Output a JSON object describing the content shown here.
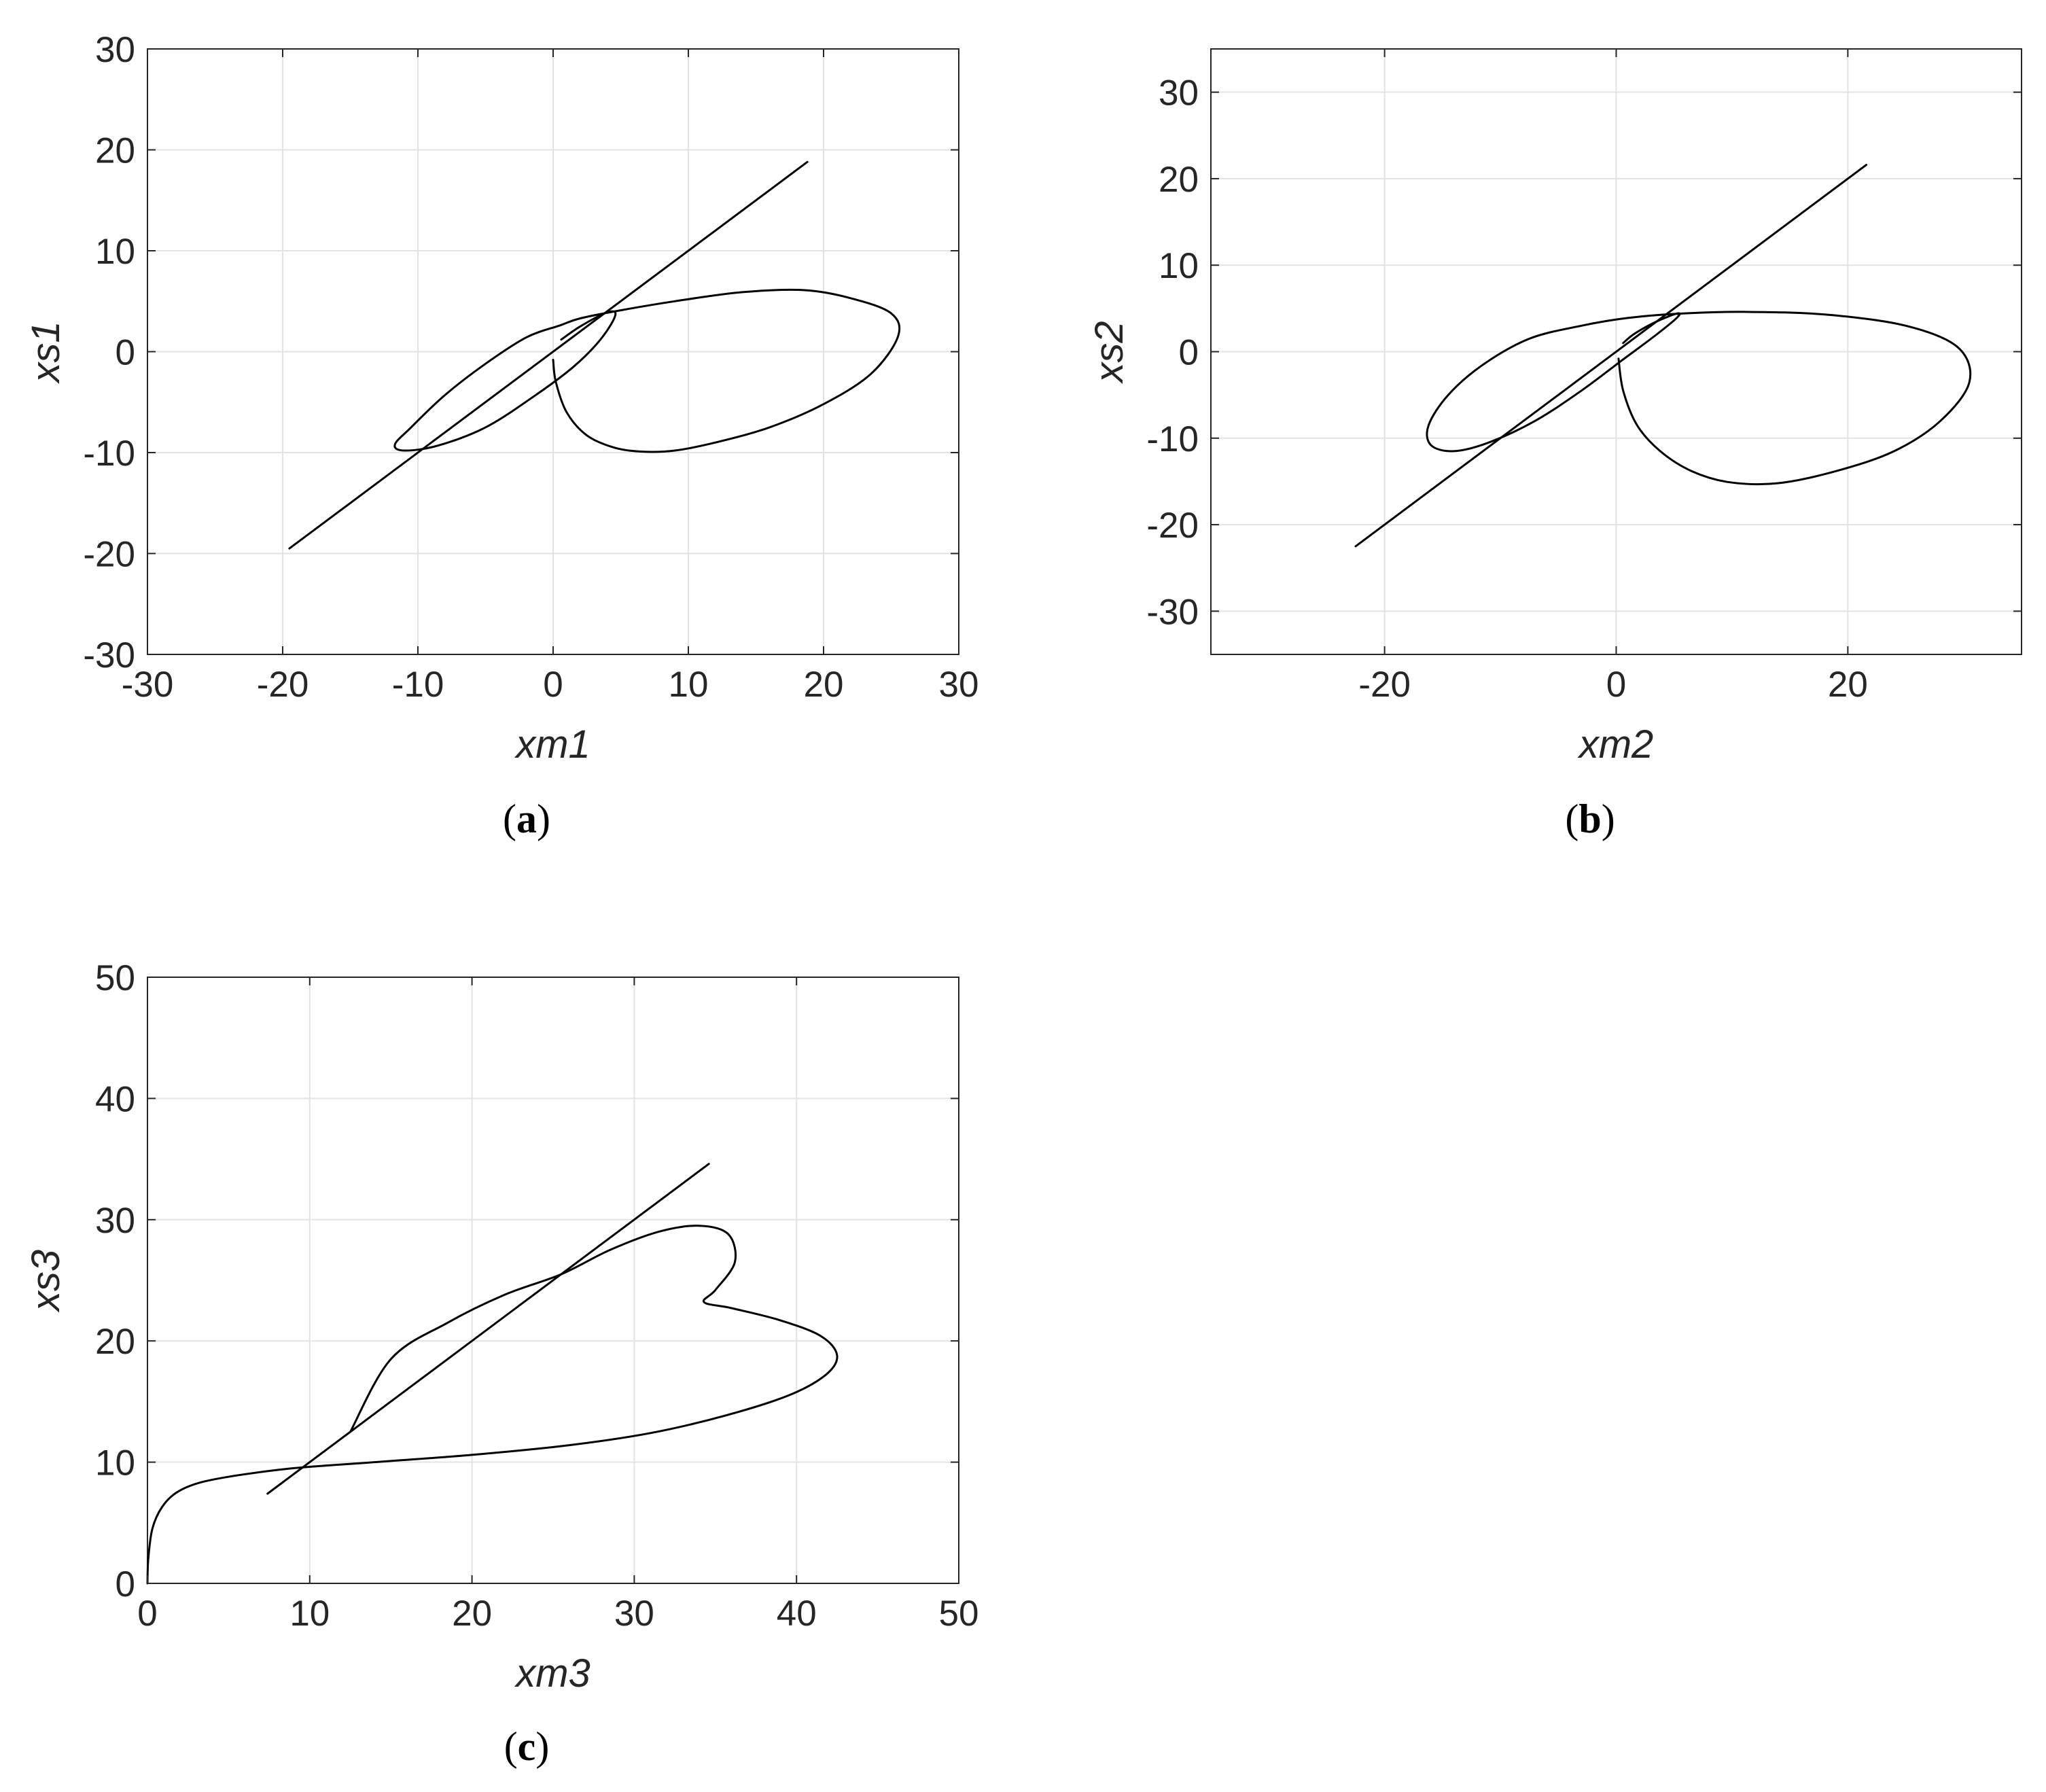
{
  "chart_data": [
    {
      "id": "a",
      "type": "line",
      "caption": "a",
      "xlabel": "xm1",
      "ylabel": "xs1",
      "xlim": [
        -30,
        30
      ],
      "ylim": [
        -30,
        30
      ],
      "xticks": [
        -30,
        -20,
        -10,
        0,
        10,
        20,
        30
      ],
      "yticks": [
        -30,
        -20,
        -10,
        0,
        10,
        20,
        30
      ],
      "xtick_labels": [
        "-30",
        "-20",
        "-10",
        "0",
        "10",
        "20",
        "30"
      ],
      "ytick_labels": [
        "-30",
        "-20",
        "-10",
        "0",
        "10",
        "20",
        "30"
      ],
      "grid": true,
      "series": [
        {
          "kind": "straight-line",
          "color": "#000000",
          "x": [
            -19.5,
            18.8
          ],
          "y": [
            -19.5,
            18.8
          ]
        },
        {
          "kind": "trajectory",
          "color": "#000000",
          "x": [
            0,
            0.2,
            1,
            2.5,
            4.5,
            6.5,
            9,
            12,
            16,
            20,
            23.5,
            25.5,
            25,
            22,
            18.5,
            14,
            9,
            5,
            2,
            0.5,
            -2,
            -5,
            -8,
            -10.5,
            -11.7,
            -11,
            -8.5,
            -5,
            -1.5,
            1.5,
            3.5,
            4.6,
            4,
            2,
            0.6
          ],
          "y": [
            -0.8,
            -3,
            -6,
            -8.3,
            -9.5,
            -9.9,
            -9.8,
            -9,
            -7.5,
            -5.2,
            -2.2,
            1.5,
            3.8,
            5.3,
            6.1,
            5.9,
            5,
            4.1,
            3.3,
            2.6,
            1.4,
            -1.2,
            -4.3,
            -7.5,
            -9.2,
            -9.8,
            -9.3,
            -7.5,
            -4.5,
            -1.5,
            1.2,
            3.6,
            3.9,
            2.5,
            1.2
          ]
        }
      ]
    },
    {
      "id": "b",
      "type": "line",
      "caption": "b",
      "xlabel": "xm2",
      "ylabel": "xs2",
      "xlim": [
        -35,
        35
      ],
      "ylim": [
        -35,
        35
      ],
      "xticks": [
        -20,
        0,
        20
      ],
      "yticks": [
        -30,
        -20,
        -10,
        0,
        10,
        20,
        30
      ],
      "xtick_labels": [
        "-20",
        "0",
        "20"
      ],
      "ytick_labels": [
        "-30",
        "-20",
        "-10",
        "0",
        "10",
        "20",
        "30"
      ],
      "grid": true,
      "series": [
        {
          "kind": "straight-line",
          "color": "#000000",
          "x": [
            -22.5,
            21.6
          ],
          "y": [
            -22.5,
            21.6
          ]
        },
        {
          "kind": "trajectory",
          "color": "#000000",
          "x": [
            0.2,
            0.6,
            1.8,
            3.8,
            6.5,
            9.8,
            14,
            19,
            24,
            28,
            30.5,
            29.5,
            25,
            18,
            11,
            5.5,
            1,
            -3,
            -7.5,
            -11.5,
            -14.5,
            -16.2,
            -16,
            -14,
            -11,
            -7,
            -3,
            0.5,
            3.5,
            5.3,
            5.2,
            3.2,
            1.5,
            0.6
          ],
          "y": [
            -0.8,
            -4.5,
            -8.5,
            -11.5,
            -13.8,
            -15.1,
            -15.2,
            -13.8,
            -11.5,
            -8,
            -3.5,
            0.5,
            3,
            4.3,
            4.6,
            4.4,
            3.9,
            3,
            1.5,
            -1.5,
            -5,
            -8.5,
            -10.8,
            -11.5,
            -10.5,
            -8,
            -4.5,
            -1,
            2,
            4,
            4.4,
            3.3,
            2,
            1
          ]
        }
      ]
    },
    {
      "id": "c",
      "type": "line",
      "caption": "c",
      "xlabel": "xm3",
      "ylabel": "xs3",
      "xlim": [
        0,
        50
      ],
      "ylim": [
        0,
        50
      ],
      "xticks": [
        0,
        10,
        20,
        30,
        40,
        50
      ],
      "yticks": [
        0,
        10,
        20,
        30,
        40,
        50
      ],
      "xtick_labels": [
        "0",
        "10",
        "20",
        "30",
        "40",
        "50"
      ],
      "ytick_labels": [
        "0",
        "10",
        "20",
        "30",
        "40",
        "50"
      ],
      "grid": true,
      "series": [
        {
          "kind": "straight-line",
          "color": "#000000",
          "x": [
            7.4,
            34.6
          ],
          "y": [
            7.4,
            34.6
          ]
        },
        {
          "kind": "trajectory",
          "color": "#000000",
          "x": [
            0,
            0.05,
            0.3,
            0.9,
            1.8,
            3.2,
            5.5,
            9,
            14,
            20,
            26,
            31,
            35.5,
            39.5,
            41.8,
            42.5,
            41.5,
            39,
            36,
            34.3,
            35,
            36.2,
            35.8,
            34,
            31.5,
            28.5,
            25.5,
            22,
            18.5,
            15,
            12.5
          ],
          "y": [
            0,
            2,
            4.5,
            6.3,
            7.5,
            8.3,
            8.9,
            9.5,
            10,
            10.6,
            11.4,
            12.4,
            13.8,
            15.5,
            17.2,
            18.8,
            20.4,
            21.7,
            22.7,
            23.2,
            24.2,
            26.5,
            28.8,
            29.5,
            29,
            27.5,
            25.5,
            23.8,
            21.5,
            18.5,
            12.5
          ]
        }
      ]
    }
  ]
}
